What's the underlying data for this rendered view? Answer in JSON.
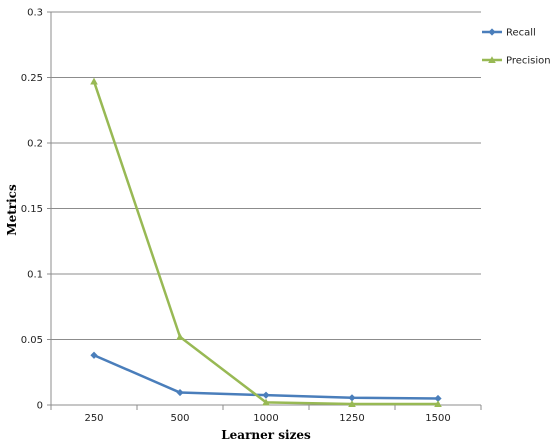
{
  "chart_data": {
    "type": "line",
    "title": "",
    "xlabel": "Learner sizes",
    "ylabel": "Metrics",
    "categories": [
      "250",
      "500",
      "1000",
      "1250",
      "1500"
    ],
    "ylim": [
      0,
      0.3
    ],
    "yticks": [
      "0",
      "0.05",
      "0.1",
      "0.15",
      "0.2",
      "0.25",
      "0.3"
    ],
    "grid": true,
    "legend_position": "top-right",
    "series": [
      {
        "name": "Recall",
        "values": [
          0.038,
          0.0095,
          0.0075,
          0.0055,
          0.005
        ],
        "color": "#4a7ebb",
        "marker": "diamond"
      },
      {
        "name": "Precision",
        "values": [
          0.247,
          0.052,
          0.002,
          0.0008,
          0.0008
        ],
        "color": "#98b954",
        "marker": "triangle"
      }
    ]
  }
}
